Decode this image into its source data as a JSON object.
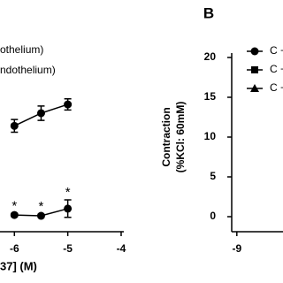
{
  "chart_data": [
    {
      "type": "line",
      "legend": [
        "othelium)",
        "ndothelium)"
      ],
      "x_label": "37] (M)",
      "x": [
        -6,
        -5.5,
        -5
      ],
      "series": [
        {
          "color": "#000000",
          "marker": "circle",
          "values": [
            11.4,
            13,
            14.1
          ],
          "errors": [
            0.8,
            0.9,
            0.7
          ]
        },
        {
          "color": "#000000",
          "marker": "circle",
          "values": [
            0.2,
            0.1,
            1
          ],
          "errors": [
            0.2,
            0.2,
            1.1
          ],
          "annotations": [
            "*",
            "*",
            "*"
          ]
        }
      ],
      "xlim": [
        -6.27,
        -3.95
      ],
      "xticks": [
        -6,
        -5,
        -4
      ],
      "ylim": [
        -1.9,
        20
      ]
    },
    {
      "type": "line",
      "title": "B",
      "y_label": [
        "Contraction",
        "(%KCl: 60mM)"
      ],
      "series": [
        {
          "name": "C +",
          "marker": "circle",
          "color": "#000000",
          "values": []
        },
        {
          "name": "C +",
          "marker": "square",
          "color": "#000000",
          "values": []
        },
        {
          "name": "C +",
          "marker": "triangle",
          "color": "#000000",
          "values": []
        }
      ],
      "xlim": [
        -9.1,
        -8.1
      ],
      "xticks": [
        -9
      ],
      "ylim": [
        0,
        20
      ],
      "yticks": [
        0,
        5,
        10,
        15,
        20
      ]
    }
  ]
}
